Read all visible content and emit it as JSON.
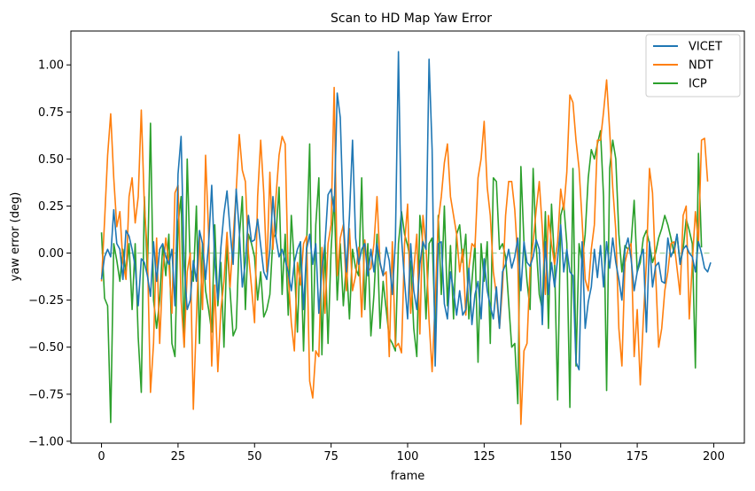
{
  "chart_data": {
    "type": "line",
    "title": "Scan to HD Map Yaw Error",
    "xlabel": "frame",
    "ylabel": "yaw error (deg)",
    "xlim": [
      -10,
      210
    ],
    "ylim": [
      -1.01,
      1.18
    ],
    "xticks": [
      0,
      25,
      50,
      75,
      100,
      125,
      150,
      175,
      200
    ],
    "yticks": [
      -1.0,
      -0.75,
      -0.5,
      -0.25,
      0.0,
      0.25,
      0.5,
      0.75,
      1.0
    ],
    "yticklabels": [
      "−1.00",
      "−0.75",
      "−0.50",
      "−0.25",
      "0.00",
      "0.25",
      "0.50",
      "0.75",
      "1.00"
    ],
    "grid": false,
    "legend_position": "upper-right",
    "zero_line": {
      "y": 0.0,
      "color": "#2ca02c",
      "style": "dashed"
    },
    "x_generator": {
      "start": 0,
      "step": 1,
      "count": 200
    },
    "series": [
      {
        "name": "VICET",
        "color": "#1f77b4",
        "values": [
          -0.14,
          -0.02,
          0.02,
          -0.02,
          0.23,
          0.05,
          0.02,
          -0.14,
          0.12,
          0.09,
          0.02,
          -0.07,
          -0.28,
          -0.03,
          -0.05,
          -0.12,
          -0.23,
          0.06,
          -0.15,
          0.02,
          0.05,
          -0.02,
          -0.06,
          0.02,
          -0.28,
          0.42,
          0.62,
          -0.07,
          -0.3,
          -0.25,
          -0.04,
          -0.15,
          0.12,
          0.05,
          -0.14,
          0.05,
          0.36,
          -0.05,
          -0.25,
          0.03,
          0.21,
          0.33,
          0.12,
          -0.06,
          0.34,
          0.12,
          -0.18,
          -0.05,
          0.2,
          0.06,
          0.07,
          0.18,
          0.04,
          -0.1,
          -0.14,
          0.02,
          0.3,
          0.08,
          -0.02,
          0.02,
          -0.04,
          -0.1,
          -0.2,
          -0.05,
          0.02,
          0.06,
          -0.3,
          0.02,
          0.1,
          -0.06,
          0.05,
          -0.32,
          -0.08,
          0.05,
          0.31,
          0.34,
          0.22,
          0.85,
          0.72,
          0.18,
          -0.1,
          0.2,
          0.6,
          0.08,
          -0.06,
          0.02,
          0.05,
          -0.12,
          0.02,
          -0.1,
          0.05,
          -0.05,
          -0.12,
          0.03,
          -0.04,
          -0.22,
          0.06,
          1.07,
          0.08,
          -0.15,
          -0.35,
          0.05,
          -0.2,
          -0.3,
          -0.06,
          0.06,
          0.02,
          1.03,
          0.55,
          -0.6,
          0.05,
          0.06,
          -0.27,
          -0.35,
          -0.1,
          -0.2,
          -0.33,
          -0.2,
          -0.33,
          -0.3,
          -0.08,
          -0.38,
          -0.22,
          -0.15,
          -0.35,
          -0.03,
          -0.2,
          -0.28,
          -0.35,
          -0.18,
          -0.4,
          -0.1,
          -0.06,
          0.02,
          -0.08,
          -0.02,
          0.08,
          -0.2,
          0.06,
          -0.05,
          -0.07,
          -0.02,
          0.07,
          0.02,
          -0.38,
          0.06,
          -0.22,
          -0.05,
          -0.18,
          -0.03,
          0.15,
          -0.1,
          0.02,
          -0.1,
          -0.12,
          -0.58,
          -0.62,
          0.06,
          -0.4,
          -0.26,
          -0.18,
          0.02,
          -0.13,
          0.04,
          -0.18,
          0.06,
          -0.08,
          0.08,
          -0.05,
          -0.14,
          -0.25,
          0.02,
          0.08,
          -0.03,
          -0.2,
          -0.1,
          -0.02,
          0.02,
          -0.42,
          0.06,
          -0.18,
          -0.07,
          -0.05,
          -0.15,
          -0.16,
          0.08,
          -0.02,
          0.02,
          0.1,
          -0.06,
          0.02,
          0.04,
          0.0,
          -0.02,
          -0.1,
          0.06,
          0.0,
          -0.08,
          -0.1,
          -0.05
        ]
      },
      {
        "name": "NDT",
        "color": "#ff7f0e",
        "values": [
          -0.15,
          0.17,
          0.52,
          0.74,
          0.4,
          0.14,
          0.22,
          -0.05,
          -0.14,
          0.3,
          0.4,
          0.16,
          0.3,
          0.76,
          0.25,
          0.0,
          -0.74,
          -0.48,
          0.08,
          -0.48,
          -0.1,
          0.08,
          -0.05,
          -0.32,
          0.32,
          0.36,
          -0.25,
          -0.5,
          -0.1,
          0.0,
          -0.83,
          -0.35,
          0.1,
          -0.3,
          0.52,
          0.1,
          -0.6,
          -0.17,
          -0.63,
          -0.3,
          -0.15,
          0.11,
          -0.18,
          0.08,
          0.33,
          0.63,
          0.44,
          0.38,
          0.0,
          -0.18,
          -0.37,
          0.3,
          0.6,
          0.32,
          -0.1,
          0.43,
          0.02,
          0.3,
          0.52,
          0.62,
          0.58,
          -0.12,
          -0.37,
          -0.52,
          -0.05,
          -0.17,
          0.05,
          0.09,
          -0.68,
          -0.77,
          -0.52,
          -0.55,
          0.03,
          -0.32,
          0.05,
          0.15,
          0.88,
          -0.12,
          0.08,
          0.15,
          -0.2,
          0.13,
          -0.2,
          -0.12,
          0.03,
          -0.34,
          0.07,
          -0.1,
          -0.08,
          0.05,
          0.3,
          -0.06,
          -0.12,
          -0.1,
          -0.55,
          0.06,
          -0.5,
          -0.48,
          -0.53,
          0.05,
          0.26,
          -0.32,
          -0.09,
          0.1,
          -0.43,
          0.2,
          0.04,
          -0.36,
          -0.63,
          -0.26,
          0.17,
          0.3,
          0.48,
          0.58,
          0.3,
          0.2,
          0.1,
          -0.1,
          0.02,
          -0.33,
          -0.08,
          0.05,
          0.03,
          0.4,
          0.5,
          0.7,
          0.35,
          0.2,
          -0.1,
          -0.22,
          -0.4,
          -0.18,
          0.2,
          0.38,
          0.38,
          0.23,
          -0.04,
          -0.91,
          -0.52,
          -0.48,
          -0.08,
          0.06,
          0.23,
          0.38,
          0.13,
          -0.22,
          0.2,
          0.05,
          -0.06,
          0.06,
          0.34,
          0.23,
          0.43,
          0.84,
          0.8,
          0.6,
          0.45,
          0.17,
          -0.14,
          -0.2,
          0.02,
          0.15,
          0.6,
          0.6,
          0.75,
          0.92,
          0.65,
          0.35,
          0.12,
          -0.4,
          -0.6,
          -0.05,
          0.02,
          0.05,
          -0.55,
          -0.3,
          -0.7,
          -0.35,
          -0.05,
          0.45,
          0.32,
          -0.1,
          -0.5,
          -0.4,
          -0.2,
          -0.1,
          0.05,
          0.06,
          -0.08,
          -0.22,
          0.2,
          0.25,
          -0.35,
          -0.05,
          0.22,
          0.05,
          0.6,
          0.61,
          0.38
        ]
      },
      {
        "name": "ICP",
        "color": "#2ca02c",
        "values": [
          0.11,
          -0.24,
          -0.28,
          -0.9,
          0.05,
          -0.04,
          -0.15,
          0.02,
          -0.1,
          0.05,
          -0.3,
          0.05,
          -0.45,
          -0.74,
          0.3,
          -0.12,
          0.69,
          -0.25,
          -0.4,
          -0.25,
          0.04,
          -0.12,
          0.1,
          -0.48,
          -0.55,
          0.15,
          0.3,
          -0.5,
          0.5,
          -0.08,
          -0.15,
          0.25,
          -0.48,
          0.05,
          -0.2,
          -0.3,
          -0.42,
          0.15,
          -0.28,
          -0.05,
          -0.5,
          0.05,
          -0.2,
          -0.44,
          -0.4,
          0.08,
          0.3,
          -0.3,
          0.1,
          0.05,
          -0.02,
          -0.25,
          -0.1,
          -0.34,
          -0.3,
          -0.22,
          0.08,
          0.1,
          0.35,
          -0.22,
          0.1,
          -0.33,
          0.2,
          -0.06,
          -0.42,
          0.06,
          -0.52,
          0.04,
          0.58,
          -0.52,
          0.15,
          0.4,
          -0.54,
          0.05,
          -0.48,
          0.02,
          0.3,
          -0.25,
          0.05,
          -0.28,
          -0.05,
          -0.35,
          0.02,
          -0.08,
          -0.12,
          0.4,
          -0.3,
          0.05,
          -0.44,
          -0.22,
          0.1,
          -0.4,
          -0.15,
          -0.3,
          -0.45,
          -0.48,
          -0.52,
          0.05,
          0.22,
          0.1,
          0.04,
          -0.05,
          -0.4,
          -0.55,
          0.2,
          0.05,
          -0.35,
          0.05,
          0.08,
          -0.4,
          0.2,
          -0.22,
          0.25,
          -0.28,
          0.04,
          -0.35,
          0.1,
          0.15,
          -0.05,
          0.1,
          -0.35,
          -0.15,
          0.05,
          -0.58,
          0.05,
          -0.15,
          0.06,
          -0.48,
          0.4,
          0.38,
          0.02,
          0.05,
          -0.02,
          -0.26,
          -0.5,
          -0.48,
          -0.8,
          0.46,
          0.06,
          -0.15,
          -0.3,
          0.45,
          0.04,
          -0.22,
          -0.3,
          0.22,
          -0.4,
          0.26,
          -0.05,
          -0.78,
          0.2,
          0.26,
          0.05,
          -0.82,
          0.45,
          -0.6,
          0.05,
          -0.05,
          0.1,
          0.4,
          0.55,
          0.5,
          0.58,
          0.65,
          0.3,
          -0.73,
          0.45,
          0.6,
          0.5,
          0.1,
          -0.1,
          0.04,
          0.02,
          0.05,
          0.28,
          -0.1,
          -0.05,
          0.08,
          0.12,
          0.05,
          -0.05,
          0.0,
          0.08,
          0.13,
          0.2,
          0.15,
          0.08,
          0.0,
          0.1,
          -0.05,
          0.02,
          0.18,
          0.12,
          0.05,
          -0.61,
          0.53,
          0.03
        ]
      }
    ]
  }
}
